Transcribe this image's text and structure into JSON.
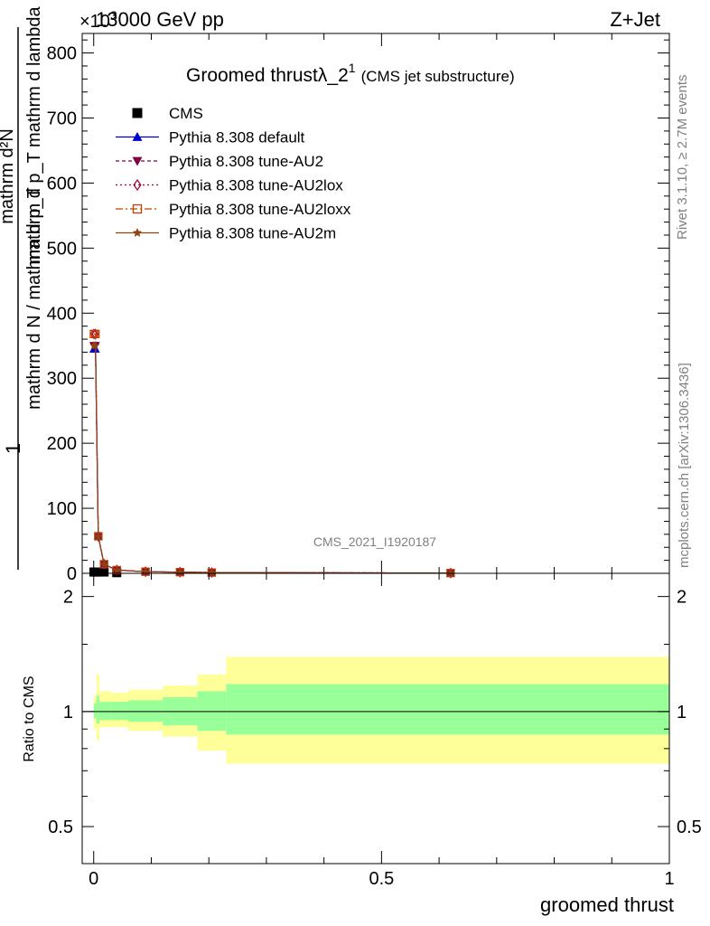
{
  "header": {
    "left": "13000 GeV pp",
    "right": "Z+Jet",
    "exponent": "×10",
    "exponent_power": "3"
  },
  "side_text": {
    "rivet": "Rivet 3.1.10, ≥ 2.7M events",
    "mcplots": "mcplots.cern.ch [arXiv:1306.3436]"
  },
  "watermark": "CMS_2021_I1920187",
  "colors": {
    "cms": "#000000",
    "default": "#0000cc",
    "au2": "#800040",
    "au2lox": "#a00030",
    "au2loxx": "#c04000",
    "au2m": "#8b4513",
    "band_inner": "#99ff99",
    "band_outer": "#ffff99"
  },
  "chart_data": [
    {
      "type": "line",
      "title": "Groomed thrustλ_2",
      "title_sup": "1",
      "title_suffix": "(CMS jet substructure)",
      "ylabel_numerator": "mathrm d²N",
      "ylabel_denominator": "mathrm d p_T mathrm d lambda",
      "ylabel_prefix_num": "1",
      "ylabel_prefix_den": "mathrm d N / mathrm d p_T",
      "xlim": [
        -0.02,
        1.0
      ],
      "ylim": [
        0,
        830
      ],
      "yscale_note": "values ×10^3",
      "y_ticks": [
        0,
        100,
        200,
        300,
        400,
        500,
        600,
        700,
        800
      ],
      "y_tick_labels": [
        "0",
        "100",
        "200",
        "300",
        "400",
        "500",
        "600",
        "700",
        "800"
      ],
      "legend": {
        "placement": "top-left"
      },
      "series": [
        {
          "name": "CMS",
          "key": "cms",
          "marker": "square",
          "x": [
            0.0003,
            0.003,
            0.008,
            0.018,
            0.04
          ],
          "y": [
            2,
            2,
            2,
            2,
            1
          ]
        },
        {
          "name": "Pythia 8.308 default",
          "key": "default",
          "marker": "triangle-up",
          "dash": "",
          "x": [
            0.0003,
            0.003,
            0.008,
            0.018,
            0.04,
            0.09,
            0.15,
            0.205,
            0.62
          ],
          "y": [
            345,
            345,
            57,
            14,
            5,
            2.5,
            1.8,
            1.2,
            0.4
          ]
        },
        {
          "name": "Pythia 8.308 tune-AU2",
          "key": "au2",
          "marker": "triangle-down",
          "dash": "4,3",
          "x": [
            0.0003,
            0.003,
            0.008,
            0.018,
            0.04,
            0.09,
            0.15,
            0.205,
            0.62
          ],
          "y": [
            350,
            350,
            56,
            14,
            5,
            2.5,
            1.8,
            1.2,
            0.4
          ]
        },
        {
          "name": "Pythia 8.308 tune-AU2lox",
          "key": "au2lox",
          "marker": "diamond-open",
          "dash": "2,3",
          "x": [
            0.0003,
            0.003,
            0.008,
            0.018,
            0.04,
            0.09,
            0.15,
            0.205,
            0.62
          ],
          "y": [
            368,
            368,
            57,
            14,
            5,
            2.5,
            1.8,
            1.2,
            0.4
          ]
        },
        {
          "name": "Pythia 8.308 tune-AU2loxx",
          "key": "au2loxx",
          "marker": "square-open",
          "dash": "8,3,2,3",
          "x": [
            0.0003,
            0.003,
            0.008,
            0.018,
            0.04,
            0.09,
            0.15,
            0.205,
            0.62
          ],
          "y": [
            368,
            368,
            57,
            14,
            5,
            2.5,
            1.8,
            1.2,
            0.4
          ]
        },
        {
          "name": "Pythia 8.308 tune-AU2m",
          "key": "au2m",
          "marker": "star",
          "dash": "",
          "x": [
            0.0003,
            0.003,
            0.008,
            0.018,
            0.04,
            0.09,
            0.15,
            0.205,
            0.62
          ],
          "y": [
            350,
            350,
            57,
            14,
            5,
            2.5,
            1.8,
            1.2,
            0.4
          ]
        }
      ]
    },
    {
      "type": "area",
      "ylabel": "Ratio to CMS",
      "xlabel": "groomed thrust",
      "xlim": [
        -0.02,
        1.0
      ],
      "ylim": [
        0.4,
        2.3
      ],
      "yscale": "log",
      "x_ticks": [
        0,
        0.5,
        1
      ],
      "x_tick_labels": [
        "0",
        "0.5",
        "1"
      ],
      "y_ticks": [
        0.5,
        1,
        2
      ],
      "y_tick_labels": [
        "0.5",
        "1",
        "2"
      ],
      "bins": [
        {
          "lo": 0.0,
          "hi": 0.005,
          "inner": [
            0.96,
            1.05
          ],
          "outer": [
            0.9,
            1.1
          ]
        },
        {
          "lo": 0.005,
          "hi": 0.01,
          "inner": [
            0.93,
            1.1
          ],
          "outer": [
            0.84,
            1.25
          ]
        },
        {
          "lo": 0.01,
          "hi": 0.03,
          "inner": [
            0.95,
            1.06
          ],
          "outer": [
            0.91,
            1.13
          ]
        },
        {
          "lo": 0.03,
          "hi": 0.06,
          "inner": [
            0.95,
            1.06
          ],
          "outer": [
            0.91,
            1.12
          ]
        },
        {
          "lo": 0.06,
          "hi": 0.12,
          "inner": [
            0.94,
            1.07
          ],
          "outer": [
            0.89,
            1.14
          ]
        },
        {
          "lo": 0.12,
          "hi": 0.18,
          "inner": [
            0.92,
            1.09
          ],
          "outer": [
            0.86,
            1.17
          ]
        },
        {
          "lo": 0.18,
          "hi": 0.23,
          "inner": [
            0.89,
            1.13
          ],
          "outer": [
            0.79,
            1.25
          ]
        },
        {
          "lo": 0.23,
          "hi": 1.0,
          "inner": [
            0.87,
            1.18
          ],
          "outer": [
            0.73,
            1.39
          ]
        }
      ]
    }
  ]
}
